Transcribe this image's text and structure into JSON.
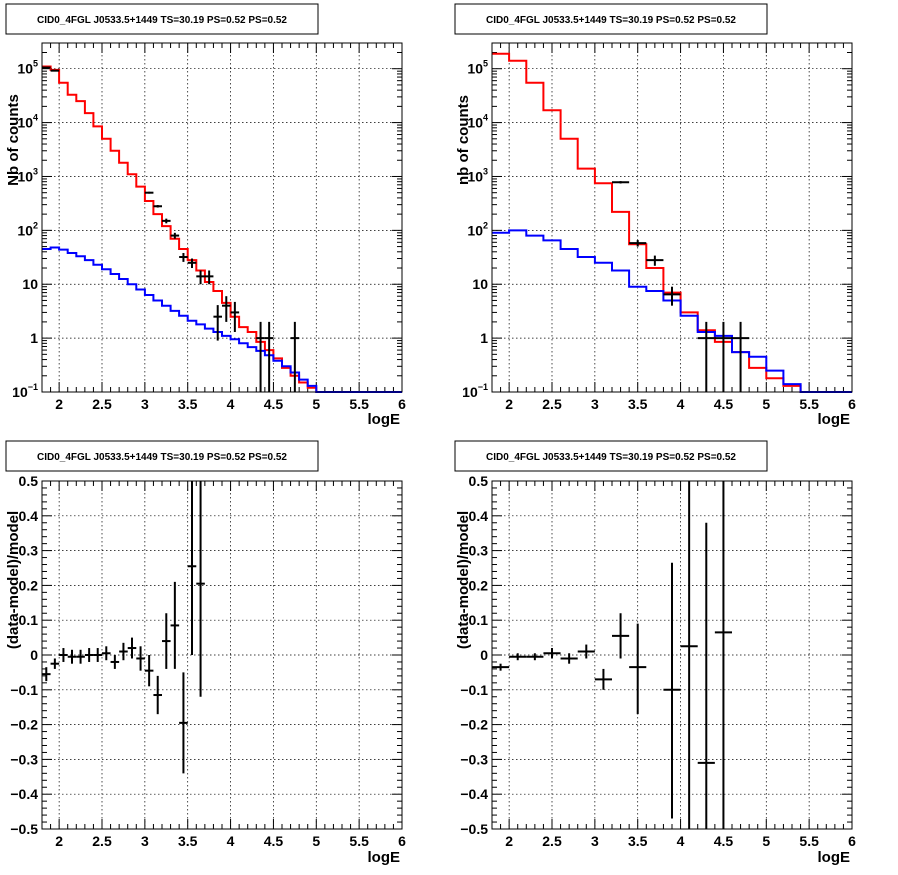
{
  "chart_data": [
    {
      "id": "p1",
      "type": "line",
      "title": "CID0_4FGL J0533.5+1449 TS=30.19 PS=0.52 PS=0.52",
      "xlabel": "logE",
      "ylabel": "Nb of counts",
      "xlim": [
        1.8,
        6.0
      ],
      "ylim": [
        0.1,
        300000
      ],
      "yscale": "log",
      "grid": true,
      "xticks": [
        "2",
        "2.5",
        "3",
        "3.5",
        "4",
        "4.5",
        "5",
        "5.5",
        "6"
      ],
      "yticks": [
        {
          "v": 0.1,
          "b": "10",
          "e": "−1"
        },
        {
          "v": 1,
          "b": "1",
          "e": ""
        },
        {
          "v": 10,
          "b": "10",
          "e": ""
        },
        {
          "v": 100,
          "b": "10",
          "e": "2"
        },
        {
          "v": 1000,
          "b": "10",
          "e": "3"
        },
        {
          "v": 10000,
          "b": "10",
          "e": "4"
        },
        {
          "v": 100000,
          "b": "10",
          "e": "5"
        }
      ],
      "series": [
        {
          "kind": "hist",
          "color": "#ff0000",
          "edges": [
            1.8,
            1.9,
            2.0,
            2.1,
            2.2,
            2.3,
            2.4,
            2.5,
            2.6,
            2.7,
            2.8,
            2.9,
            3.0,
            3.1,
            3.2,
            3.3,
            3.4,
            3.5,
            3.6,
            3.7,
            3.8,
            3.9,
            4.0,
            4.1,
            4.2,
            4.3,
            4.4,
            4.5,
            4.6,
            4.7,
            4.8,
            4.9,
            5.0,
            5.1,
            5.2,
            5.3,
            5.4,
            5.5,
            5.6,
            5.7,
            5.8,
            5.9,
            6.0
          ],
          "values": [
            110000,
            95000,
            55000,
            33000,
            25000,
            15000,
            8500,
            5000,
            3000,
            1800,
            1100,
            650,
            350,
            200,
            120,
            70,
            45,
            28,
            18,
            11,
            7.5,
            4.5,
            2.5,
            1.6,
            1.3,
            0.85,
            0.6,
            0.42,
            0.28,
            0.2,
            0.15,
            0.12,
            0.1,
            0.1,
            0.1,
            0.1,
            0.1,
            0.1,
            0.1,
            0.1,
            0.1,
            0.1
          ]
        },
        {
          "kind": "hist",
          "color": "#0000ff",
          "edges": [
            1.8,
            1.9,
            2.0,
            2.1,
            2.2,
            2.3,
            2.4,
            2.5,
            2.6,
            2.7,
            2.8,
            2.9,
            3.0,
            3.1,
            3.2,
            3.3,
            3.4,
            3.5,
            3.6,
            3.7,
            3.8,
            3.9,
            4.0,
            4.1,
            4.2,
            4.3,
            4.4,
            4.5,
            4.6,
            4.7,
            4.8,
            4.9,
            5.0,
            5.1,
            5.2,
            5.3,
            5.4,
            5.5,
            5.6,
            5.7,
            5.8,
            5.9,
            6.0
          ],
          "values": [
            45,
            48,
            44,
            38,
            33,
            28,
            23,
            19,
            15.5,
            12.5,
            10,
            8,
            6.3,
            5,
            4,
            3.2,
            2.6,
            2.1,
            1.8,
            1.5,
            1.3,
            1.1,
            0.95,
            0.8,
            0.68,
            0.58,
            0.48,
            0.38,
            0.3,
            0.23,
            0.17,
            0.13,
            0.1,
            0.1,
            0.1,
            0.1,
            0.1,
            0.1,
            0.1,
            0.1,
            0.1,
            0.1
          ]
        },
        {
          "kind": "points",
          "color": "#000000",
          "points": [
            {
              "x": 1.85,
              "y": 105000,
              "ex": 0.05,
              "lo": 104000,
              "hi": 106000
            },
            {
              "x": 1.95,
              "y": 92000,
              "ex": 0.05,
              "lo": 91000,
              "hi": 93000
            },
            {
              "x": 3.05,
              "y": 500,
              "ex": 0.05,
              "lo": 480,
              "hi": 520
            },
            {
              "x": 3.15,
              "y": 280,
              "ex": 0.05,
              "lo": 265,
              "hi": 295
            },
            {
              "x": 3.25,
              "y": 150,
              "ex": 0.05,
              "lo": 135,
              "hi": 165
            },
            {
              "x": 3.35,
              "y": 80,
              "ex": 0.05,
              "lo": 70,
              "hi": 90
            },
            {
              "x": 3.45,
              "y": 32,
              "ex": 0.05,
              "lo": 26,
              "hi": 38
            },
            {
              "x": 3.55,
              "y": 25,
              "ex": 0.05,
              "lo": 20,
              "hi": 30
            },
            {
              "x": 3.65,
              "y": 14,
              "ex": 0.05,
              "lo": 10,
              "hi": 18
            },
            {
              "x": 3.75,
              "y": 14,
              "ex": 0.05,
              "lo": 10,
              "hi": 18
            },
            {
              "x": 3.85,
              "y": 2.5,
              "ex": 0.05,
              "lo": 0.9,
              "hi": 4.1
            },
            {
              "x": 3.95,
              "y": 4,
              "ex": 0.05,
              "lo": 2,
              "hi": 6
            },
            {
              "x": 4.05,
              "y": 3,
              "ex": 0.05,
              "lo": 1.3,
              "hi": 4.7
            },
            {
              "x": 4.35,
              "y": 1,
              "ex": 0.05,
              "lo": 0.1,
              "hi": 2
            },
            {
              "x": 4.45,
              "y": 1,
              "ex": 0.05,
              "lo": 0.1,
              "hi": 2
            },
            {
              "x": 4.75,
              "y": 1,
              "ex": 0.05,
              "lo": 0.1,
              "hi": 2
            }
          ]
        }
      ]
    },
    {
      "id": "p2",
      "type": "line",
      "title": "CID0_4FGL J0533.5+1449 TS=30.19 PS=0.52 PS=0.52",
      "xlabel": "logE",
      "ylabel": "nb of counts",
      "xlim": [
        1.8,
        6.0
      ],
      "ylim": [
        0.1,
        300000
      ],
      "yscale": "log",
      "grid": true,
      "xticks": [
        "2",
        "2.5",
        "3",
        "3.5",
        "4",
        "4.5",
        "5",
        "5.5",
        "6"
      ],
      "yticks": [
        {
          "v": 0.1,
          "b": "10",
          "e": "−1"
        },
        {
          "v": 1,
          "b": "1",
          "e": ""
        },
        {
          "v": 10,
          "b": "10",
          "e": ""
        },
        {
          "v": 100,
          "b": "10",
          "e": "2"
        },
        {
          "v": 1000,
          "b": "10",
          "e": "3"
        },
        {
          "v": 10000,
          "b": "10",
          "e": "4"
        },
        {
          "v": 100000,
          "b": "10",
          "e": "5"
        }
      ],
      "series": [
        {
          "kind": "hist",
          "color": "#ff0000",
          "edges": [
            1.8,
            2.0,
            2.2,
            2.4,
            2.6,
            2.8,
            3.0,
            3.2,
            3.4,
            3.6,
            3.8,
            4.0,
            4.2,
            4.4,
            4.6,
            4.8,
            5.0,
            5.2,
            5.4,
            5.6,
            5.8,
            6.0
          ],
          "values": [
            190000,
            140000,
            55000,
            17000,
            5000,
            1400,
            750,
            220,
            55,
            20,
            7,
            3,
            1.4,
            0.85,
            0.55,
            0.28,
            0.18,
            0.13,
            0.1,
            0.1,
            0.1
          ]
        },
        {
          "kind": "hist",
          "color": "#0000ff",
          "edges": [
            1.8,
            2.0,
            2.2,
            2.4,
            2.6,
            2.8,
            3.0,
            3.2,
            3.4,
            3.6,
            3.8,
            4.0,
            4.2,
            4.4,
            4.6,
            4.8,
            5.0,
            5.2,
            5.4,
            5.6,
            5.8,
            6.0
          ],
          "values": [
            90,
            100,
            80,
            65,
            45,
            32,
            25,
            18,
            9,
            7.5,
            5,
            2.6,
            1.3,
            1.1,
            0.55,
            0.45,
            0.25,
            0.14,
            0.1,
            0.1,
            0.1
          ]
        },
        {
          "kind": "points",
          "color": "#000000",
          "points": [
            {
              "x": 3.3,
              "y": 780,
              "ex": 0.1,
              "lo": 740,
              "hi": 820
            },
            {
              "x": 3.5,
              "y": 58,
              "ex": 0.1,
              "lo": 50,
              "hi": 66
            },
            {
              "x": 3.7,
              "y": 28,
              "ex": 0.1,
              "lo": 22,
              "hi": 34
            },
            {
              "x": 3.9,
              "y": 6.5,
              "ex": 0.1,
              "lo": 4,
              "hi": 9
            },
            {
              "x": 4.3,
              "y": 1,
              "ex": 0.1,
              "lo": 0.1,
              "hi": 2
            },
            {
              "x": 4.5,
              "y": 1,
              "ex": 0.1,
              "lo": 0.1,
              "hi": 2
            },
            {
              "x": 4.7,
              "y": 1,
              "ex": 0.1,
              "lo": 0.1,
              "hi": 2
            }
          ]
        }
      ]
    },
    {
      "id": "p3",
      "type": "scatter",
      "title": "CID0_4FGL J0533.5+1449 TS=30.19 PS=0.52 PS=0.52",
      "xlabel": "logE",
      "ylabel": "(data-model)/model",
      "xlim": [
        1.8,
        6.0
      ],
      "ylim": [
        -0.5,
        0.5
      ],
      "yscale": "linear",
      "grid": true,
      "xticks": [
        "2",
        "2.5",
        "3",
        "3.5",
        "4",
        "4.5",
        "5",
        "5.5",
        "6"
      ],
      "yticks": [
        {
          "v": -0.5,
          "b": "−0.5",
          "e": ""
        },
        {
          "v": -0.4,
          "b": "−0.4",
          "e": ""
        },
        {
          "v": -0.3,
          "b": "−0.3",
          "e": ""
        },
        {
          "v": -0.2,
          "b": "−0.2",
          "e": ""
        },
        {
          "v": -0.1,
          "b": "−0.1",
          "e": ""
        },
        {
          "v": 0,
          "b": "0",
          "e": ""
        },
        {
          "v": 0.1,
          "b": "0.1",
          "e": ""
        },
        {
          "v": 0.2,
          "b": "0.2",
          "e": ""
        },
        {
          "v": 0.3,
          "b": "0.3",
          "e": ""
        },
        {
          "v": 0.4,
          "b": "0.4",
          "e": ""
        },
        {
          "v": 0.5,
          "b": "0.5",
          "e": ""
        }
      ],
      "series": [
        {
          "kind": "points",
          "color": "#000000",
          "points": [
            {
              "x": 1.85,
              "y": -0.055,
              "ex": 0.05,
              "lo": -0.075,
              "hi": -0.035
            },
            {
              "x": 1.95,
              "y": -0.025,
              "ex": 0.05,
              "lo": -0.04,
              "hi": -0.01
            },
            {
              "x": 2.05,
              "y": 0.0,
              "ex": 0.05,
              "lo": -0.02,
              "hi": 0.02
            },
            {
              "x": 2.15,
              "y": -0.005,
              "ex": 0.05,
              "lo": -0.025,
              "hi": 0.015
            },
            {
              "x": 2.25,
              "y": -0.005,
              "ex": 0.05,
              "lo": -0.025,
              "hi": 0.015
            },
            {
              "x": 2.35,
              "y": 0.0,
              "ex": 0.05,
              "lo": -0.02,
              "hi": 0.02
            },
            {
              "x": 2.45,
              "y": 0.0,
              "ex": 0.05,
              "lo": -0.02,
              "hi": 0.02
            },
            {
              "x": 2.55,
              "y": 0.005,
              "ex": 0.05,
              "lo": -0.015,
              "hi": 0.025
            },
            {
              "x": 2.65,
              "y": -0.02,
              "ex": 0.05,
              "lo": -0.04,
              "hi": 0.0
            },
            {
              "x": 2.75,
              "y": 0.01,
              "ex": 0.05,
              "lo": -0.015,
              "hi": 0.035
            },
            {
              "x": 2.85,
              "y": 0.02,
              "ex": 0.05,
              "lo": -0.01,
              "hi": 0.05
            },
            {
              "x": 2.95,
              "y": -0.01,
              "ex": 0.05,
              "lo": -0.045,
              "hi": 0.025
            },
            {
              "x": 3.05,
              "y": -0.045,
              "ex": 0.05,
              "lo": -0.09,
              "hi": 0.0
            },
            {
              "x": 3.15,
              "y": -0.115,
              "ex": 0.05,
              "lo": -0.17,
              "hi": -0.06
            },
            {
              "x": 3.25,
              "y": 0.04,
              "ex": 0.05,
              "lo": -0.04,
              "hi": 0.12
            },
            {
              "x": 3.35,
              "y": 0.085,
              "ex": 0.05,
              "lo": -0.04,
              "hi": 0.21
            },
            {
              "x": 3.45,
              "y": -0.195,
              "ex": 0.05,
              "lo": -0.34,
              "hi": -0.05
            },
            {
              "x": 3.55,
              "y": 0.255,
              "ex": 0.05,
              "lo": 0.0,
              "hi": 0.5
            },
            {
              "x": 3.65,
              "y": 0.205,
              "ex": 0.05,
              "lo": -0.12,
              "hi": 0.5
            }
          ]
        }
      ]
    },
    {
      "id": "p4",
      "type": "scatter",
      "title": "CID0_4FGL J0533.5+1449 TS=30.19 PS=0.52 PS=0.52",
      "xlabel": "logE",
      "ylabel": "(data-model)/model",
      "xlim": [
        1.8,
        6.0
      ],
      "ylim": [
        -0.5,
        0.5
      ],
      "yscale": "linear",
      "grid": true,
      "xticks": [
        "2",
        "2.5",
        "3",
        "3.5",
        "4",
        "4.5",
        "5",
        "5.5",
        "6"
      ],
      "yticks": [
        {
          "v": -0.5,
          "b": "−0.5",
          "e": ""
        },
        {
          "v": -0.4,
          "b": "−0.4",
          "e": ""
        },
        {
          "v": -0.3,
          "b": "−0.3",
          "e": ""
        },
        {
          "v": -0.2,
          "b": "−0.2",
          "e": ""
        },
        {
          "v": -0.1,
          "b": "−0.1",
          "e": ""
        },
        {
          "v": 0,
          "b": "0",
          "e": ""
        },
        {
          "v": 0.1,
          "b": "0.1",
          "e": ""
        },
        {
          "v": 0.2,
          "b": "0.2",
          "e": ""
        },
        {
          "v": 0.3,
          "b": "0.3",
          "e": ""
        },
        {
          "v": 0.4,
          "b": "0.4",
          "e": ""
        },
        {
          "v": 0.5,
          "b": "0.5",
          "e": ""
        }
      ],
      "series": [
        {
          "kind": "points",
          "color": "#000000",
          "points": [
            {
              "x": 1.9,
              "y": -0.035,
              "ex": 0.1,
              "lo": -0.045,
              "hi": -0.025
            },
            {
              "x": 2.1,
              "y": -0.005,
              "ex": 0.1,
              "lo": -0.015,
              "hi": 0.005
            },
            {
              "x": 2.3,
              "y": -0.005,
              "ex": 0.1,
              "lo": -0.015,
              "hi": 0.005
            },
            {
              "x": 2.5,
              "y": 0.005,
              "ex": 0.1,
              "lo": -0.01,
              "hi": 0.02
            },
            {
              "x": 2.7,
              "y": -0.01,
              "ex": 0.1,
              "lo": -0.025,
              "hi": 0.005
            },
            {
              "x": 2.9,
              "y": 0.01,
              "ex": 0.1,
              "lo": -0.01,
              "hi": 0.03
            },
            {
              "x": 3.1,
              "y": -0.07,
              "ex": 0.1,
              "lo": -0.1,
              "hi": -0.04
            },
            {
              "x": 3.3,
              "y": 0.055,
              "ex": 0.1,
              "lo": -0.01,
              "hi": 0.12
            },
            {
              "x": 3.5,
              "y": -0.035,
              "ex": 0.1,
              "lo": -0.17,
              "hi": 0.09
            },
            {
              "x": 3.9,
              "y": -0.1,
              "ex": 0.1,
              "lo": -0.47,
              "hi": 0.265
            },
            {
              "x": 4.1,
              "y": 0.025,
              "ex": 0.1,
              "lo": -0.5,
              "hi": 0.5
            },
            {
              "x": 4.3,
              "y": -0.31,
              "ex": 0.1,
              "lo": -0.5,
              "hi": 0.38
            },
            {
              "x": 4.5,
              "y": 0.065,
              "ex": 0.1,
              "lo": -0.5,
              "hi": 0.5
            }
          ]
        }
      ]
    }
  ]
}
